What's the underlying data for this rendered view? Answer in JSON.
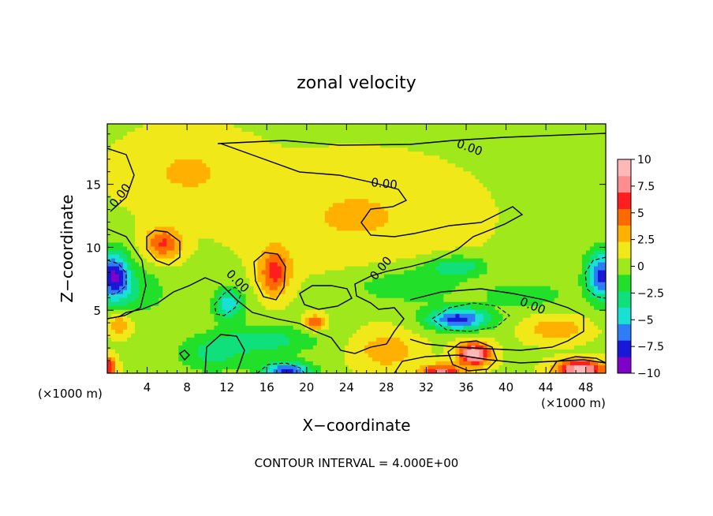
{
  "chart_data": {
    "type": "heatmap",
    "title": "zonal velocity",
    "xlabel": "X−coordinate",
    "ylabel": "Z−coordinate",
    "x_unit_left": "(×1000 m)",
    "x_unit_right": "(×1000 m)",
    "xlim": [
      0,
      50
    ],
    "ylim": [
      0,
      19.8
    ],
    "x_ticks": [
      4,
      8,
      12,
      16,
      20,
      24,
      28,
      32,
      36,
      40,
      44,
      48
    ],
    "y_ticks": [
      5,
      10,
      15
    ],
    "colorbar": {
      "range": [
        -10,
        10
      ],
      "levels": [
        -10,
        -7.5,
        -5,
        -2.5,
        0,
        2.5,
        5,
        7.5,
        10
      ],
      "labels": [
        "10",
        "7.5",
        "5",
        "2.5",
        "0",
        "−2.5",
        "−5",
        "−7.5",
        "−10"
      ],
      "colors": [
        "#7f00c8",
        "#1818d8",
        "#2e7cf6",
        "#19e0d4",
        "#10e07c",
        "#22e02a",
        "#9ee81c",
        "#f0e818",
        "#ffb000",
        "#ff6a00",
        "#ff1e1e",
        "#ff8d8d",
        "#ffb8b8"
      ]
    },
    "contour_labels": [
      "0.00",
      "0.00",
      "0.00",
      "0.00",
      "0.00",
      "0.00",
      "0.00"
    ],
    "background_value": 0.5,
    "features": [
      {
        "x": 0.6,
        "z": 7.7,
        "value": -8.5,
        "sx": 1.6,
        "sz": 2.0
      },
      {
        "x": 49.6,
        "z": 7.8,
        "value": -8.0,
        "sx": 1.6,
        "sz": 2.0
      },
      {
        "x": 35.2,
        "z": 4.3,
        "value": -8.0,
        "sx": 3.2,
        "sz": 0.9
      },
      {
        "x": 12.2,
        "z": 5.5,
        "value": -5.5,
        "sx": 1.5,
        "sz": 1.3
      },
      {
        "x": 18.0,
        "z": 0.2,
        "value": -8.0,
        "sx": 2.5,
        "sz": 0.7
      },
      {
        "x": 16.0,
        "z": 2.6,
        "value": -3.5,
        "sx": 5.0,
        "sz": 1.2
      },
      {
        "x": 10.5,
        "z": 1.5,
        "value": -3.0,
        "sx": 3.5,
        "sz": 1.5
      },
      {
        "x": 35.0,
        "z": 8.5,
        "value": -4.0,
        "sx": 3.0,
        "sz": 0.8
      },
      {
        "x": 42.0,
        "z": 6.2,
        "value": -2.5,
        "sx": 4.0,
        "sz": 1.0
      },
      {
        "x": 3.0,
        "z": 6.5,
        "value": -2.5,
        "sx": 3.0,
        "sz": 2.0
      },
      {
        "x": 30.0,
        "z": 7.0,
        "value": -2.5,
        "sx": 6.0,
        "sz": 1.5
      },
      {
        "x": 36.8,
        "z": 1.5,
        "value": 9.5,
        "sx": 1.6,
        "sz": 0.9
      },
      {
        "x": 47.5,
        "z": 0.3,
        "value": 9.0,
        "sx": 2.5,
        "sz": 0.7
      },
      {
        "x": 33.5,
        "z": 0.1,
        "value": 7.0,
        "sx": 2.0,
        "sz": 0.6
      },
      {
        "x": 16.8,
        "z": 8.0,
        "value": 5.5,
        "sx": 1.5,
        "sz": 1.8
      },
      {
        "x": 5.6,
        "z": 10.3,
        "value": 5.0,
        "sx": 1.8,
        "sz": 1.3
      },
      {
        "x": 20.8,
        "z": 4.0,
        "value": 5.0,
        "sx": 1.0,
        "sz": 0.6
      },
      {
        "x": 1.2,
        "z": 4.0,
        "value": 3.5,
        "sx": 1.2,
        "sz": 1.0
      },
      {
        "x": 25.0,
        "z": 12.5,
        "value": 2.0,
        "sx": 10.0,
        "sz": 4.0
      },
      {
        "x": 8.0,
        "z": 16.0,
        "value": 2.0,
        "sx": 6.0,
        "sz": 3.0
      },
      {
        "x": 45.0,
        "z": 3.5,
        "value": 3.0,
        "sx": 3.0,
        "sz": 1.0
      },
      {
        "x": 0.1,
        "z": 0.5,
        "value": 6.0,
        "sx": 0.8,
        "sz": 0.8
      },
      {
        "x": 28.0,
        "z": 1.8,
        "value": 3.0,
        "sx": 3.0,
        "sz": 1.5
      }
    ],
    "footer": "CONTOUR INTERVAL =  4.000E+00"
  }
}
